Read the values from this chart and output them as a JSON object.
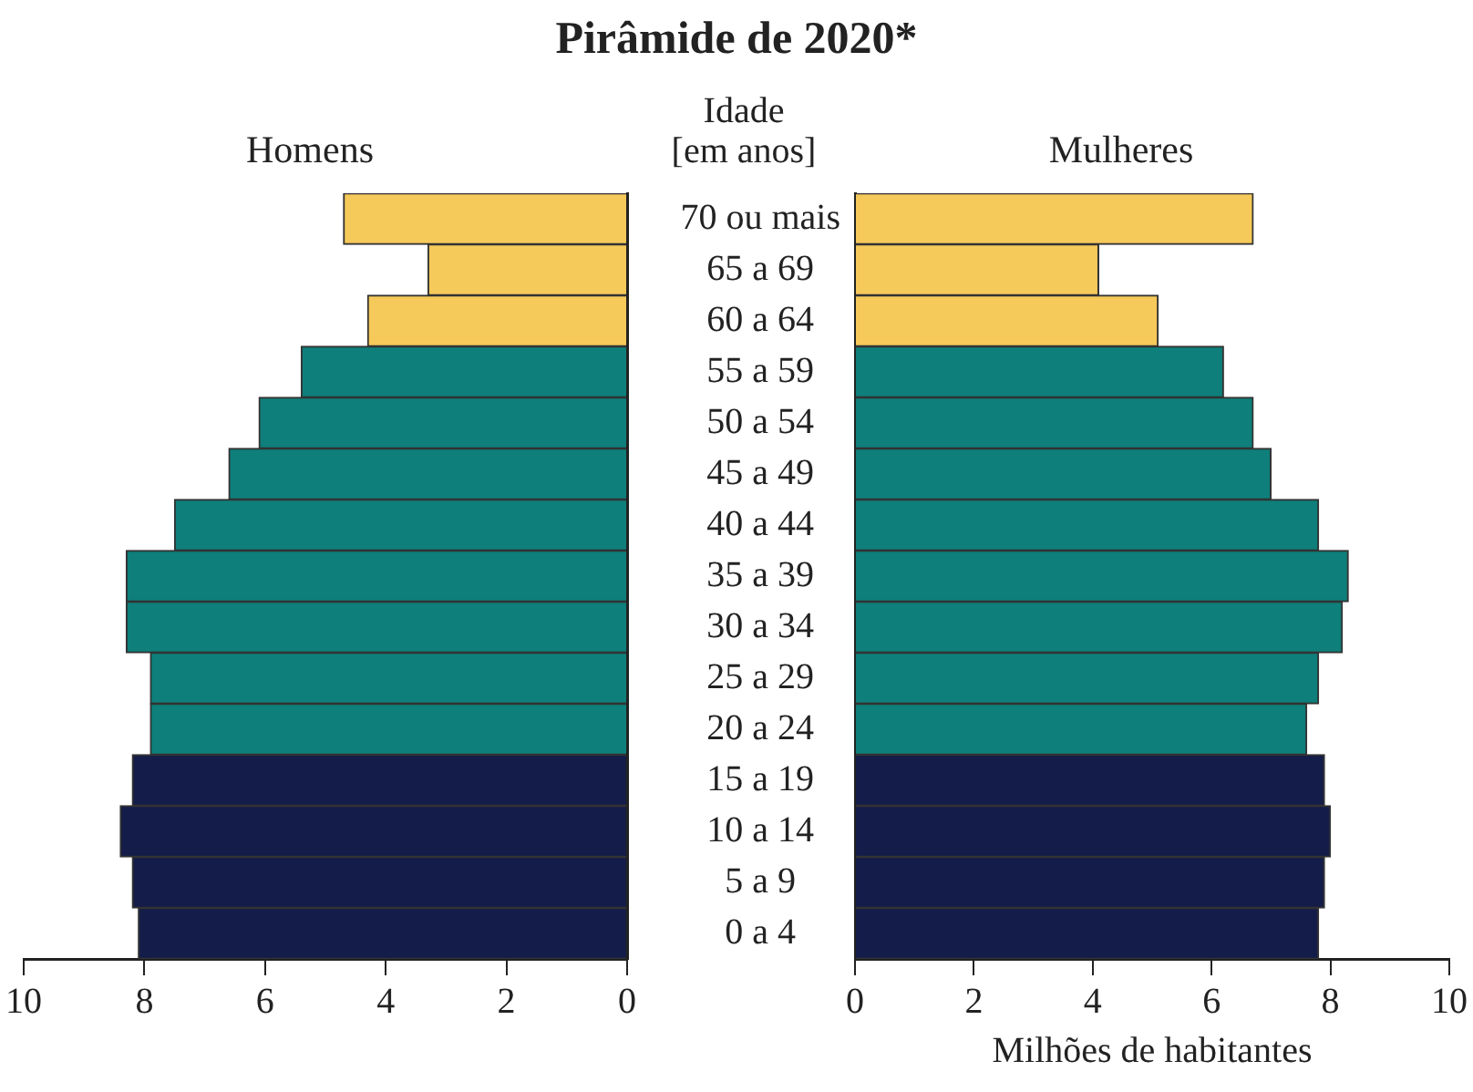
{
  "chart_data": [
    {
      "type": "bar",
      "orientation": "horizontal",
      "title": "Pirâmide de 2020*",
      "subtitle": "Homens",
      "tick_labels": "x",
      "categories": [
        null,
        null,
        null,
        null,
        null,
        null,
        null,
        null,
        null,
        null,
        null,
        null,
        null,
        null,
        null
      ],
      "values": [
        4.7,
        3.3,
        4.3,
        5.4,
        6.1,
        6.6,
        7.5,
        8.3,
        8.3,
        7.9,
        7.9,
        8.2,
        8.4,
        8.2,
        8.1
      ],
      "colors": [
        "#f5c95a",
        "#f5c95a",
        "#f5c95a",
        "#0e7f7a",
        "#0e7f7a",
        "#0e7f7a",
        "#0e7f7a",
        "#0e7f7a",
        "#0e7f7a",
        "#0e7f7a",
        "#0e7f7a",
        "#141d4a",
        "#141d4a",
        "#141d4a",
        "#141d4a"
      ],
      "xlim": [
        10,
        0
      ],
      "xticks": [
        10,
        8,
        6,
        4,
        2,
        0
      ]
    },
    {
      "type": "bar",
      "orientation": "horizontal",
      "subtitle": "Mulheres",
      "ylabel": "Idade [em anos]",
      "xlabel": "Milhões de habitantes",
      "categories": [
        "70 ou mais",
        "65 a 69",
        "60 a 64",
        "55 a 59",
        "50 a 54",
        "45 a 49",
        "40 a 44",
        "35 a 39",
        "30 a 34",
        "25 a 29",
        "20 a 24",
        "15 a 19",
        "10 a 14",
        "5 a 9",
        "0 a 4"
      ],
      "values": [
        6.7,
        4.1,
        5.1,
        6.2,
        6.7,
        7.0,
        7.8,
        8.3,
        8.2,
        7.8,
        7.6,
        7.9,
        8.0,
        7.9,
        7.8
      ],
      "colors": [
        "#f5c95a",
        "#f5c95a",
        "#f5c95a",
        "#0e7f7a",
        "#0e7f7a",
        "#0e7f7a",
        "#0e7f7a",
        "#0e7f7a",
        "#0e7f7a",
        "#0e7f7a",
        "#0e7f7a",
        "#141d4a",
        "#141d4a",
        "#141d4a",
        "#141d4a"
      ],
      "xlim": [
        0,
        10
      ],
      "xticks": [
        0,
        2,
        4,
        6,
        8,
        10
      ]
    }
  ]
}
